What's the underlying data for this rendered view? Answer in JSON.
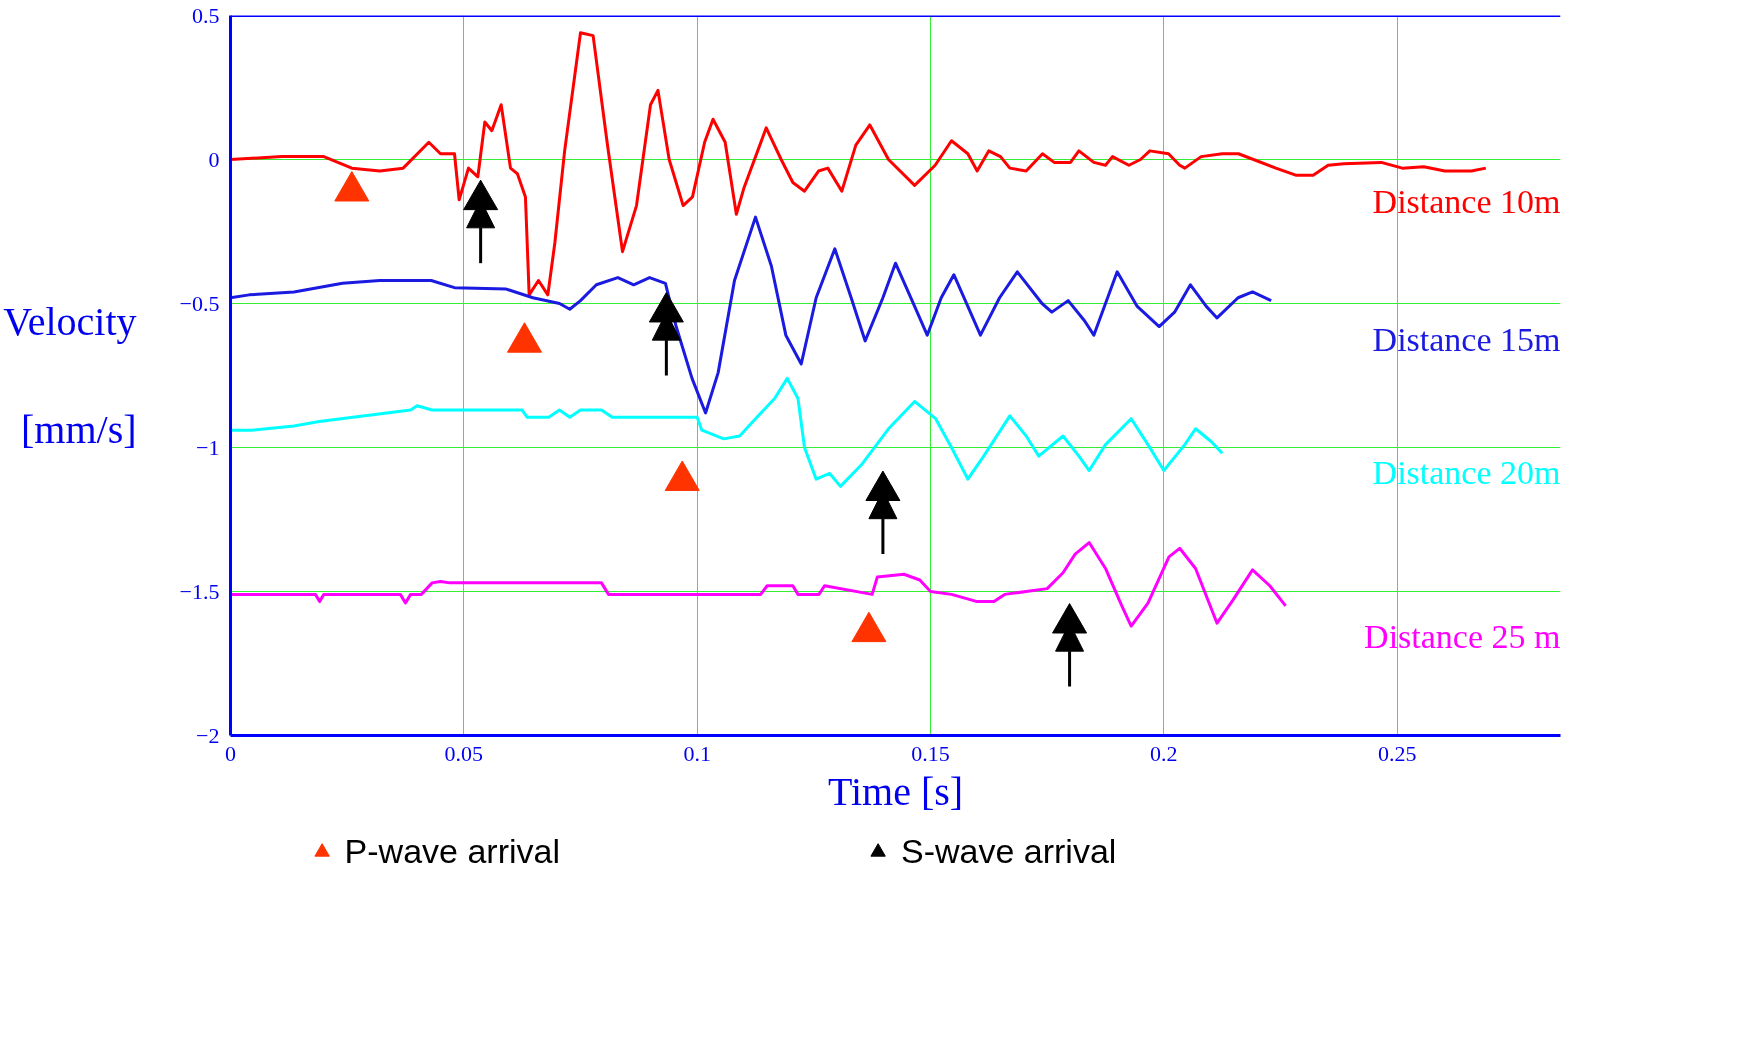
{
  "chart_data": {
    "type": "line",
    "xlabel": "Time [s]",
    "ylabel": "Velocity [mm/s]",
    "xlim": [
      0,
      0.285
    ],
    "ylim": [
      -2,
      0.5
    ],
    "xticks": [
      0,
      0.05,
      0.1,
      0.15,
      0.2,
      0.25
    ],
    "yticks": [
      0.5,
      0,
      {
        "value": -0.5,
        "label": "−0.5"
      },
      {
        "value": -1,
        "label": "−1"
      },
      {
        "value": -1.5,
        "label": "−1.5"
      },
      {
        "value": -2,
        "label": "−2"
      }
    ],
    "grid": true,
    "legend": "bottom",
    "line_style": "solid",
    "series": [
      {
        "name": "Distance 10m",
        "color": "#ff0000",
        "x": [
          0,
          0.011,
          0.02,
          0.026,
          0.032,
          0.037,
          0.0425,
          0.045,
          0.048,
          0.049,
          0.051,
          0.053,
          0.0545,
          0.056,
          0.058,
          0.06,
          0.0615,
          0.0632,
          0.064,
          0.066,
          0.068,
          0.0695,
          0.0716,
          0.075,
          0.0777,
          0.0807,
          0.084,
          0.087,
          0.09,
          0.0916,
          0.094,
          0.097,
          0.099,
          0.1016,
          0.1034,
          0.106,
          0.1084,
          0.11,
          0.1148,
          0.118,
          0.1205,
          0.123,
          0.126,
          0.128,
          0.131,
          0.134,
          0.137,
          0.141,
          0.1466,
          0.151,
          0.1545,
          0.158,
          0.16,
          0.1625,
          0.165,
          0.167,
          0.1705,
          0.174,
          0.1765,
          0.18,
          0.1818,
          0.185,
          0.1875,
          0.189,
          0.1925,
          0.195,
          0.197,
          0.201,
          0.2034,
          0.2045,
          0.208,
          0.2125,
          0.216,
          0.224,
          0.2284,
          0.232,
          0.2352,
          0.2386,
          0.2466,
          0.2511,
          0.2557,
          0.2602,
          0.2659,
          0.269
        ],
        "values": [
          0,
          0.01,
          0.01,
          -0.03,
          -0.04,
          -0.03,
          0.06,
          0.02,
          0.02,
          -0.14,
          -0.03,
          -0.06,
          0.13,
          0.1,
          0.19,
          -0.03,
          -0.05,
          -0.13,
          -0.47,
          -0.42,
          -0.47,
          -0.29,
          0.03,
          0.44,
          0.43,
          0.06,
          -0.32,
          -0.16,
          0.19,
          0.24,
          0,
          -0.16,
          -0.13,
          0.06,
          0.14,
          0.06,
          -0.19,
          -0.1,
          0.11,
          0,
          -0.08,
          -0.11,
          -0.04,
          -0.03,
          -0.11,
          0.05,
          0.12,
          0,
          -0.09,
          -0.02,
          0.065,
          0.02,
          -0.04,
          0.03,
          0.01,
          -0.03,
          -0.04,
          0.02,
          -0.01,
          -0.01,
          0.03,
          -0.01,
          -0.02,
          0.01,
          -0.02,
          0,
          0.03,
          0.02,
          -0.02,
          -0.03,
          0.01,
          0.02,
          0.02,
          -0.03,
          -0.055,
          -0.055,
          -0.02,
          -0.015,
          -0.01,
          -0.03,
          -0.025,
          -0.04,
          -0.04,
          -0.03
        ]
      },
      {
        "name": "Distance 15m",
        "color": "#1a1ae0",
        "x": [
          0,
          0.004,
          0.0136,
          0.024,
          0.032,
          0.043,
          0.048,
          0.0591,
          0.0648,
          0.0705,
          0.0727,
          0.075,
          0.0784,
          0.083,
          0.0864,
          0.0898,
          0.0932,
          0.0955,
          0.0989,
          0.1018,
          0.1045,
          0.108,
          0.1125,
          0.1159,
          0.119,
          0.1223,
          0.1255,
          0.1295,
          0.133,
          0.136,
          0.1398,
          0.1425,
          0.1466,
          0.1493,
          0.1523,
          0.155,
          0.158,
          0.1607,
          0.1648,
          0.1686,
          0.1739,
          0.176,
          0.1795,
          0.183,
          0.185,
          0.19,
          0.1943,
          0.199,
          0.2023,
          0.2057,
          0.2091,
          0.2114,
          0.2159,
          0.219,
          0.223
        ],
        "values": [
          -0.48,
          -0.47,
          -0.46,
          -0.43,
          -0.42,
          -0.42,
          -0.445,
          -0.45,
          -0.48,
          -0.5,
          -0.52,
          -0.49,
          -0.435,
          -0.41,
          -0.435,
          -0.41,
          -0.43,
          -0.58,
          -0.76,
          -0.88,
          -0.74,
          -0.42,
          -0.2,
          -0.37,
          -0.61,
          -0.71,
          -0.48,
          -0.31,
          -0.48,
          -0.63,
          -0.48,
          -0.36,
          -0.51,
          -0.61,
          -0.48,
          -0.4,
          -0.51,
          -0.61,
          -0.48,
          -0.39,
          -0.5,
          -0.53,
          -0.49,
          -0.56,
          -0.61,
          -0.39,
          -0.51,
          -0.58,
          -0.53,
          -0.435,
          -0.51,
          -0.55,
          -0.48,
          -0.46,
          -0.49
        ]
      },
      {
        "name": "Distance 20m",
        "color": "#00ffff",
        "x": [
          0,
          0.0045,
          0.0136,
          0.019,
          0.0386,
          0.04,
          0.0432,
          0.0625,
          0.0636,
          0.0682,
          0.0705,
          0.0727,
          0.075,
          0.0795,
          0.0818,
          0.1,
          0.101,
          0.1057,
          0.1091,
          0.1125,
          0.1166,
          0.1193,
          0.1216,
          0.123,
          0.1255,
          0.1284,
          0.1307,
          0.1352,
          0.141,
          0.1466,
          0.1511,
          0.1545,
          0.158,
          0.1614,
          0.167,
          0.1705,
          0.1732,
          0.1784,
          0.1818,
          0.184,
          0.1875,
          0.193,
          0.1966,
          0.2,
          0.2045,
          0.2068,
          0.2102,
          0.2125
        ],
        "values": [
          -0.94,
          -0.94,
          -0.925,
          -0.91,
          -0.87,
          -0.855,
          -0.87,
          -0.87,
          -0.895,
          -0.895,
          -0.87,
          -0.895,
          -0.87,
          -0.87,
          -0.895,
          -0.895,
          -0.94,
          -0.97,
          -0.96,
          -0.9,
          -0.83,
          -0.76,
          -0.83,
          -1.0,
          -1.11,
          -1.09,
          -1.135,
          -1.06,
          -0.935,
          -0.84,
          -0.9,
          -1.0,
          -1.11,
          -1.03,
          -0.89,
          -0.96,
          -1.03,
          -0.96,
          -1.03,
          -1.08,
          -0.99,
          -0.9,
          -0.99,
          -1.08,
          -0.99,
          -0.935,
          -0.98,
          -1.02
        ]
      },
      {
        "name": "Distance 25 m",
        "color": "#ff00ff",
        "x": [
          0,
          0.0182,
          0.0191,
          0.02,
          0.0364,
          0.0375,
          0.0386,
          0.0409,
          0.0432,
          0.045,
          0.047,
          0.05,
          0.0795,
          0.081,
          0.1136,
          0.115,
          0.1205,
          0.1216,
          0.1261,
          0.1273,
          0.1375,
          0.1386,
          0.1443,
          0.1477,
          0.15,
          0.1545,
          0.16,
          0.1636,
          0.1659,
          0.1705,
          0.175,
          0.1784,
          0.181,
          0.184,
          0.1875,
          0.191,
          0.193,
          0.1966,
          0.2011,
          0.2034,
          0.2068,
          0.2114,
          0.2148,
          0.219,
          0.2227,
          0.2261
        ],
        "values": [
          -1.51,
          -1.51,
          -1.535,
          -1.51,
          -1.51,
          -1.54,
          -1.51,
          -1.51,
          -1.47,
          -1.465,
          -1.47,
          -1.47,
          -1.47,
          -1.51,
          -1.51,
          -1.48,
          -1.48,
          -1.51,
          -1.51,
          -1.48,
          -1.51,
          -1.45,
          -1.44,
          -1.46,
          -1.5,
          -1.51,
          -1.535,
          -1.535,
          -1.51,
          -1.5,
          -1.49,
          -1.435,
          -1.37,
          -1.33,
          -1.42,
          -1.55,
          -1.62,
          -1.54,
          -1.38,
          -1.35,
          -1.42,
          -1.61,
          -1.53,
          -1.425,
          -1.48,
          -1.55
        ]
      },
      {
        "name": "P-wave arrival",
        "type": "scatter",
        "marker": "triangle",
        "color": "#ff3300",
        "x": [
          0.026,
          0.063,
          0.0968,
          0.1368
        ],
        "values": [
          -0.11,
          -0.635,
          -1.115,
          -1.64
        ]
      },
      {
        "name": "S-wave arrival",
        "type": "scatter",
        "marker": "triangle",
        "color": "#000000",
        "x": [
          0.0536,
          0.0934,
          0.1398,
          0.1798
        ],
        "values": [
          -0.14,
          -0.53,
          -1.15,
          -1.61
        ]
      }
    ]
  }
}
